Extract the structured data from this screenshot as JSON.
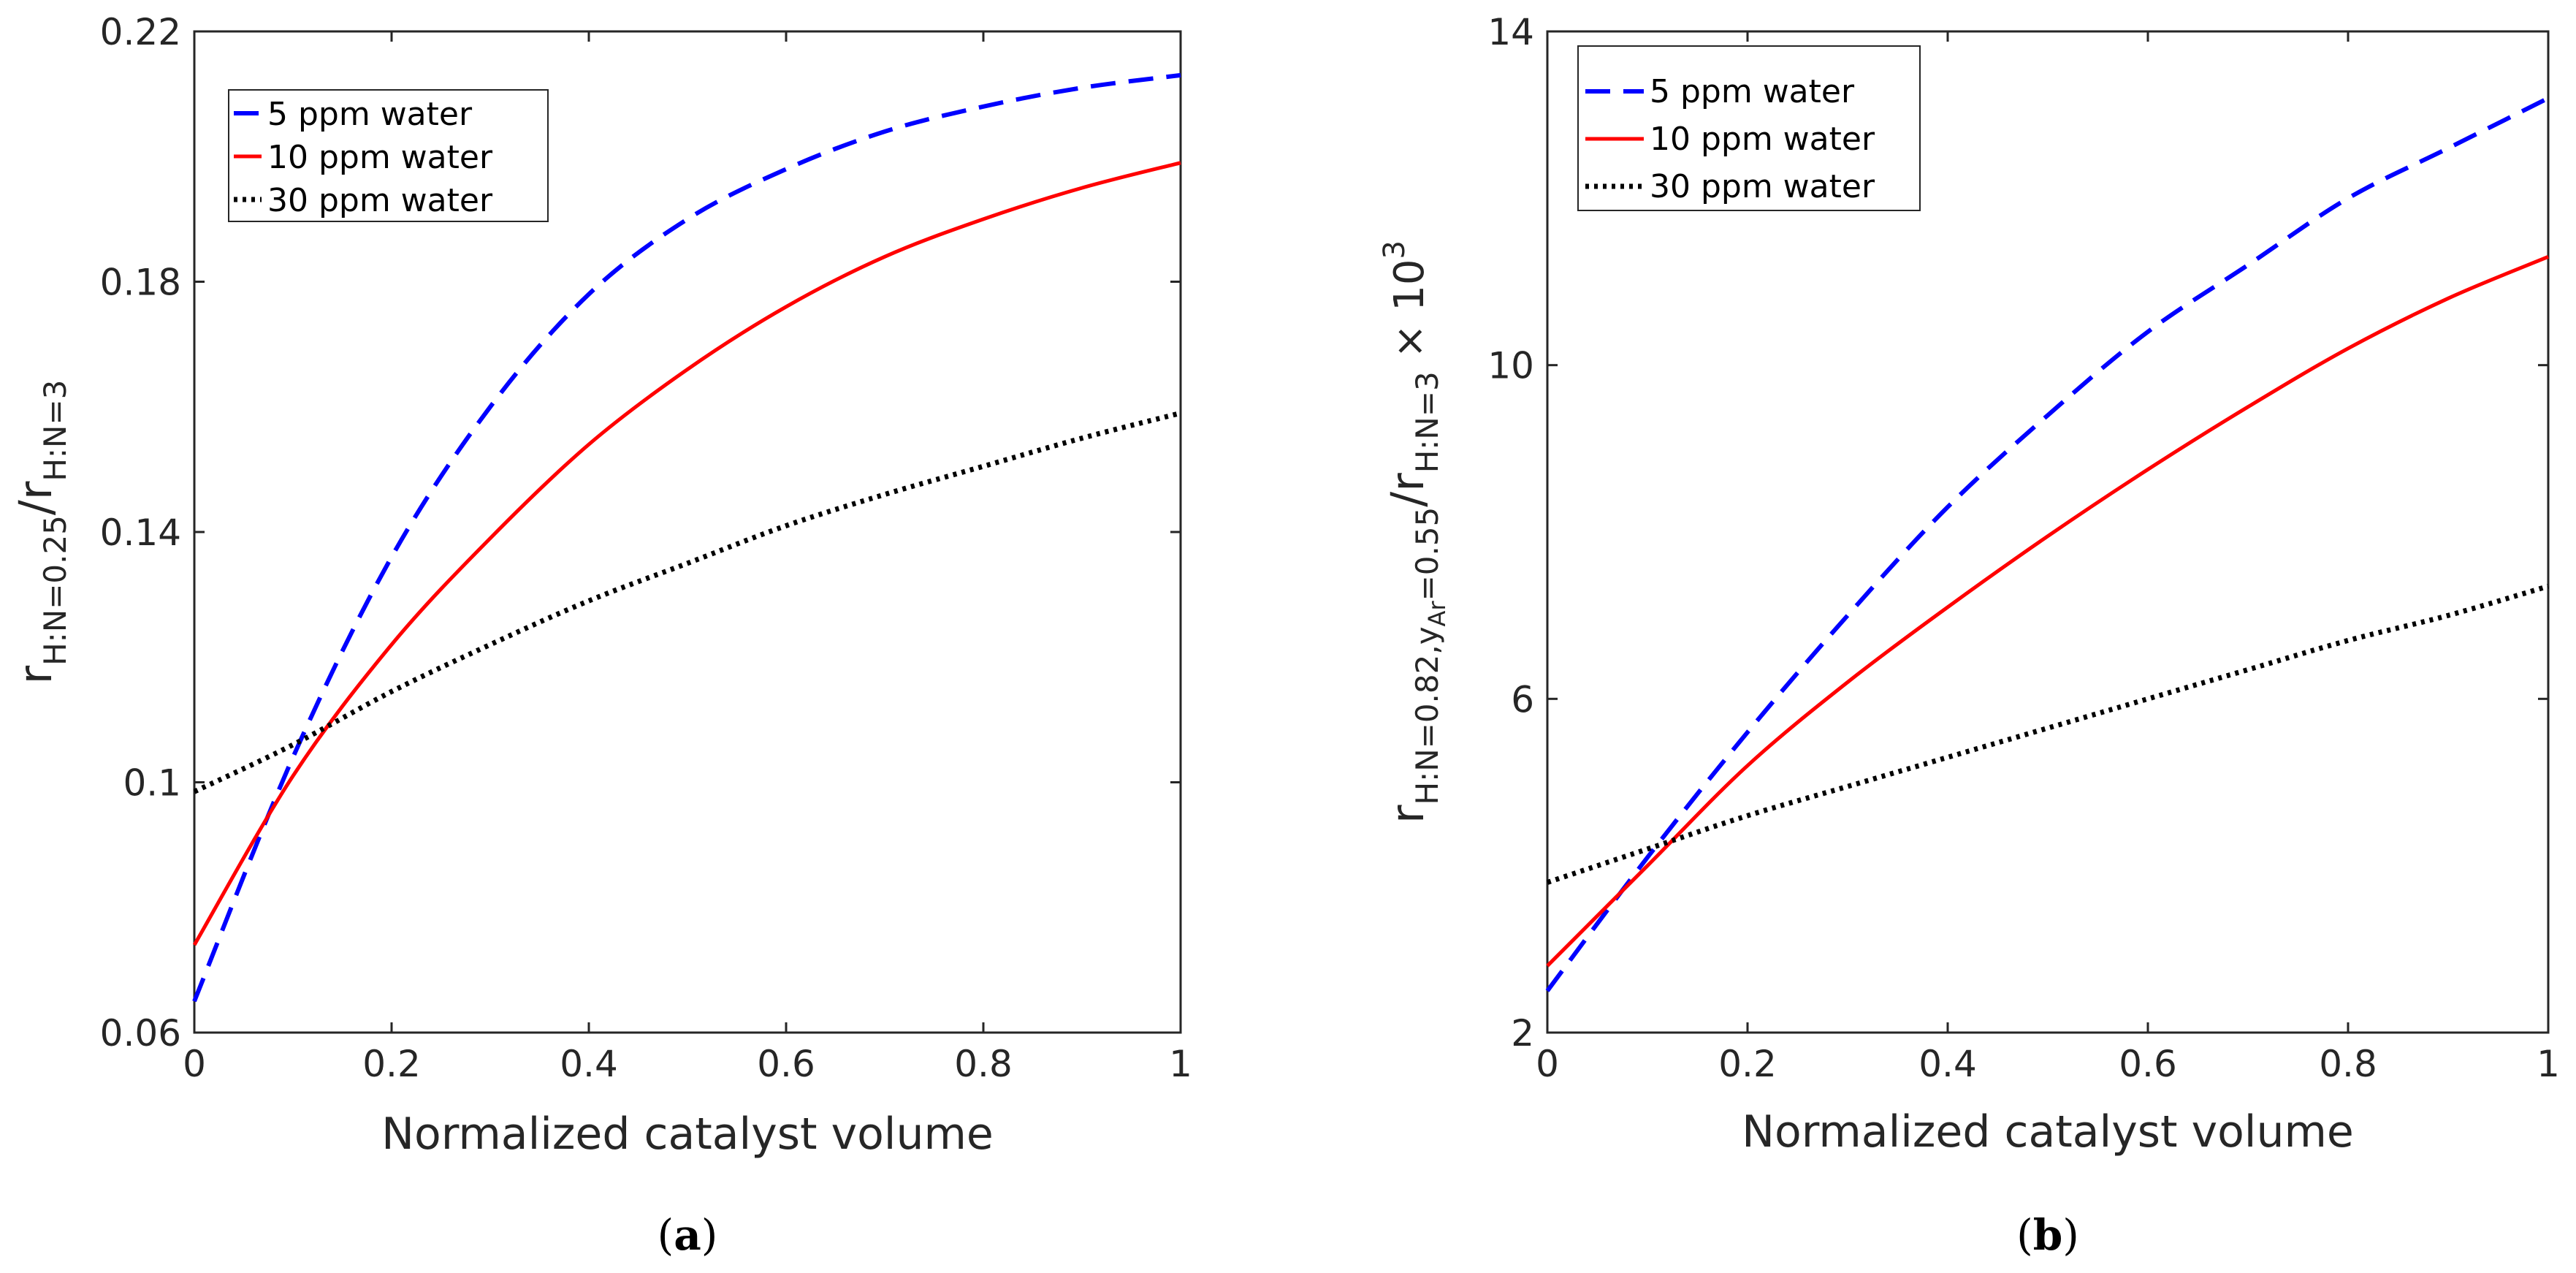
{
  "chart_data": [
    {
      "type": "line",
      "panel": "a",
      "caption_prefix": "(",
      "caption_letter": "a",
      "caption_suffix": ")",
      "xlabel": "Normalized catalyst volume",
      "ylabel": {
        "r1": "r",
        "sub1": "H:N=0.25",
        "slash": "/r",
        "sub2": "H:N=3"
      },
      "xlim": [
        0,
        1
      ],
      "ylim": [
        0.06,
        0.22
      ],
      "x_ticks": [
        "0",
        "0.2",
        "0.4",
        "0.6",
        "0.8",
        "1"
      ],
      "x_tick_values": [
        0,
        0.2,
        0.4,
        0.6,
        0.8,
        1
      ],
      "y_ticks": [
        "0.06",
        "0.1",
        "0.14",
        "0.18",
        "0.22"
      ],
      "y_tick_values": [
        0.06,
        0.1,
        0.14,
        0.18,
        0.22
      ],
      "legend_position": "top-left",
      "x": [
        0,
        0.1,
        0.2,
        0.3,
        0.4,
        0.5,
        0.6,
        0.7,
        0.8,
        0.9,
        1.0
      ],
      "series": [
        {
          "name": "5 ppm water",
          "style": "dashed",
          "color": "#0000ff",
          "values": [
            0.065,
            0.104,
            0.136,
            0.16,
            0.178,
            0.19,
            0.198,
            0.204,
            0.208,
            0.211,
            0.213
          ]
        },
        {
          "name": "10 ppm water",
          "style": "solid",
          "color": "#ff0000",
          "values": [
            0.074,
            0.101,
            0.122,
            0.139,
            0.154,
            0.166,
            0.176,
            0.184,
            0.19,
            0.195,
            0.199
          ]
        },
        {
          "name": "30 ppm water",
          "style": "dotted",
          "color": "#000000",
          "values": [
            0.0985,
            0.106,
            0.1145,
            0.122,
            0.129,
            0.135,
            0.141,
            0.146,
            0.1505,
            0.155,
            0.159
          ]
        }
      ]
    },
    {
      "type": "line",
      "panel": "b",
      "caption_prefix": "(",
      "caption_letter": "b",
      "caption_suffix": ")",
      "xlabel": "Normalized catalyst volume",
      "ylabel": {
        "r1": "r",
        "sub1": "H:N=0.82,y",
        "subsub": "Ar",
        "sub1b": "=0.55",
        "slash": "/r",
        "sub2": "H:N=3",
        "times": " × 10",
        "exp": "3"
      },
      "xlim": [
        0,
        1
      ],
      "ylim": [
        2,
        14
      ],
      "x_ticks": [
        "0",
        "0.2",
        "0.4",
        "0.6",
        "0.8",
        "1"
      ],
      "x_tick_values": [
        0,
        0.2,
        0.4,
        0.6,
        0.8,
        1
      ],
      "y_ticks": [
        "2",
        "6",
        "10",
        "14"
      ],
      "y_tick_values": [
        2,
        6,
        10,
        14
      ],
      "legend_position": "top-left",
      "x": [
        0,
        0.1,
        0.2,
        0.3,
        0.4,
        0.5,
        0.6,
        0.7,
        0.8,
        0.9,
        1.0
      ],
      "series": [
        {
          "name": "5 ppm water",
          "style": "dashed",
          "color": "#0000ff",
          "values": [
            2.5,
            4.1,
            5.6,
            7.0,
            8.3,
            9.4,
            10.4,
            11.2,
            12.0,
            12.6,
            13.2
          ]
        },
        {
          "name": "10 ppm water",
          "style": "solid",
          "color": "#ff0000",
          "values": [
            2.8,
            4.0,
            5.2,
            6.2,
            7.1,
            7.95,
            8.75,
            9.5,
            10.2,
            10.8,
            11.3
          ]
        },
        {
          "name": "30 ppm water",
          "style": "dotted",
          "color": "#000000",
          "values": [
            3.8,
            4.2,
            4.6,
            4.95,
            5.3,
            5.65,
            6.0,
            6.35,
            6.7,
            7.0,
            7.35
          ]
        }
      ]
    }
  ]
}
